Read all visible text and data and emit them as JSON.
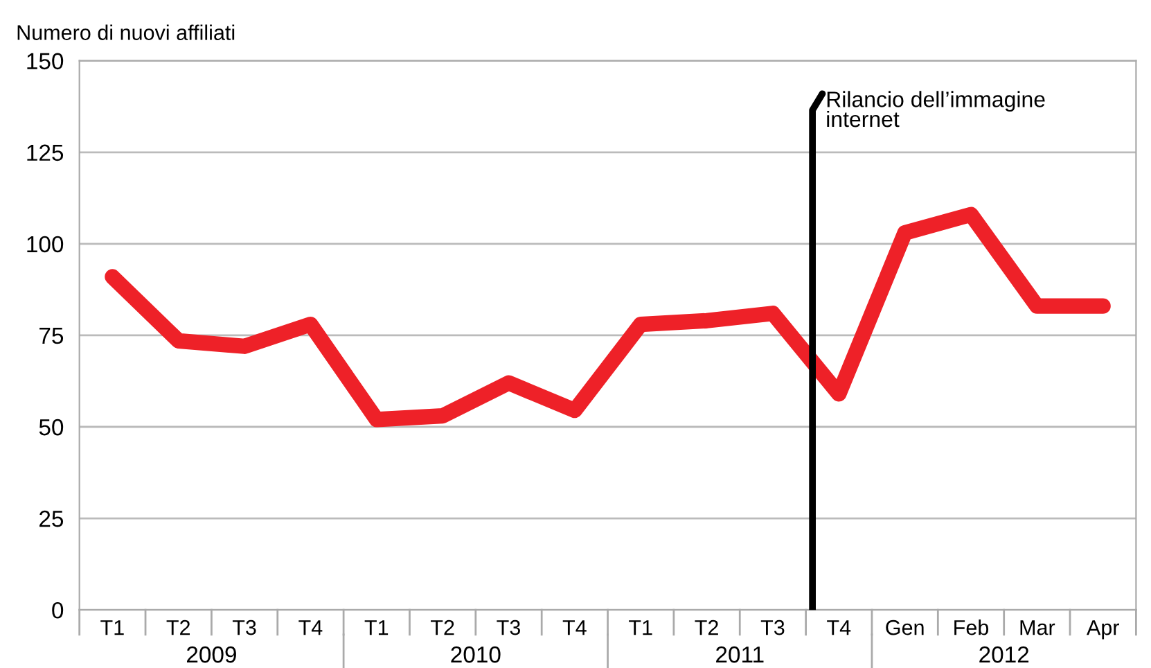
{
  "chart_data": {
    "type": "line",
    "ylabel": "Numero di nuovi affiliati",
    "categories": [
      "T1",
      "T2",
      "T3",
      "T4",
      "T1",
      "T2",
      "T3",
      "T4",
      "T1",
      "T2",
      "T3",
      "T4",
      "Gen",
      "Feb",
      "Mar",
      "Apr"
    ],
    "series": [
      {
        "color": "#ee2128",
        "values": [
          91,
          73.5,
          72,
          78,
          52,
          53,
          62,
          54.5,
          78,
          79,
          81,
          59,
          103,
          108,
          83,
          83
        ]
      }
    ],
    "ylim": [
      0,
      150
    ],
    "yticks": [
      0,
      25,
      50,
      75,
      100,
      125,
      150
    ],
    "grid": "y",
    "line_style": "solid",
    "annotations": [
      "2009",
      "2010",
      "2011",
      "2012",
      "Rilancio dell’immagine\ninternet"
    ]
  }
}
